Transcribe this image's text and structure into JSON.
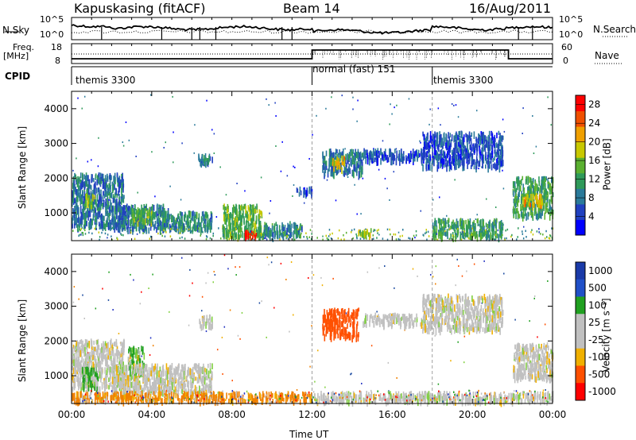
{
  "header": {
    "station": "Kapuskasing (fitACF)",
    "beam": "Beam 14",
    "date": "16/Aug/2011"
  },
  "panels": {
    "nsky_label": "N.Sky",
    "nsearch_label": "N.Search",
    "freq_label_line1": "Freq.",
    "freq_label_line2": "[MHz]",
    "nave_label": "Nave",
    "cpid_label": "CPID",
    "nsky_ticks": [
      "10^5",
      "10^0"
    ],
    "nsearch_ticks": [
      "10^5",
      "10^0"
    ],
    "freq_ticks": [
      "18",
      "8"
    ],
    "nave_ticks": [
      "60",
      "0"
    ]
  },
  "cpid_segments": [
    {
      "label": "themis 3300",
      "start": 0,
      "end": 12
    },
    {
      "label": "normal (fast) 151",
      "start": 12,
      "end": 18
    },
    {
      "label": "themis 3300",
      "start": 18,
      "end": 24
    }
  ],
  "chart_data": [
    {
      "type": "heatmap",
      "ylabel": "Slant Range [km]",
      "xlabel": "Time UT",
      "x_ticks": [
        "00:00",
        "04:00",
        "08:00",
        "12:00",
        "16:00",
        "20:00",
        "00:00"
      ],
      "xlim_hours": [
        0,
        24
      ],
      "y_ticks": [
        1000,
        2000,
        3000,
        4000
      ],
      "ylim": [
        200,
        4500
      ],
      "colorbar": {
        "label": "Power [dB]",
        "ticks": [
          "4",
          "8",
          "12",
          "16",
          "20",
          "24",
          "28"
        ],
        "range": [
          0,
          30
        ]
      },
      "regions": [
        {
          "t": [
            0.0,
            2.6
          ],
          "r": [
            600,
            2100
          ],
          "level": 8
        },
        {
          "t": [
            0.6,
            1.2
          ],
          "r": [
            1200,
            1500
          ],
          "level": 16
        },
        {
          "t": [
            2.0,
            4.8
          ],
          "r": [
            500,
            1200
          ],
          "level": 8
        },
        {
          "t": [
            3.0,
            4.0
          ],
          "r": [
            700,
            1100
          ],
          "level": 14
        },
        {
          "t": [
            4.5,
            7.0
          ],
          "r": [
            500,
            1000
          ],
          "level": 10
        },
        {
          "t": [
            7.5,
            9.5
          ],
          "r": [
            300,
            1200
          ],
          "level": 14
        },
        {
          "t": [
            8.5,
            9.2
          ],
          "r": [
            300,
            450
          ],
          "level": 28
        },
        {
          "t": [
            9.5,
            11.5
          ],
          "r": [
            300,
            700
          ],
          "level": 10
        },
        {
          "t": [
            6.3,
            7.0
          ],
          "r": [
            2400,
            2700
          ],
          "level": 8
        },
        {
          "t": [
            11.2,
            12.0
          ],
          "r": [
            1500,
            1700
          ],
          "level": 6
        },
        {
          "t": [
            12.5,
            14.5
          ],
          "r": [
            2100,
            2800
          ],
          "level": 8
        },
        {
          "t": [
            13.0,
            13.6
          ],
          "r": [
            2250,
            2600
          ],
          "level": 20
        },
        {
          "t": [
            14.5,
            17.5
          ],
          "r": [
            2500,
            2800
          ],
          "level": 6
        },
        {
          "t": [
            17.5,
            21.5
          ],
          "r": [
            2300,
            3300
          ],
          "level": 6
        },
        {
          "t": [
            18.0,
            21.5
          ],
          "r": [
            300,
            800
          ],
          "level": 12
        },
        {
          "t": [
            14.0,
            15.0
          ],
          "r": [
            350,
            500
          ],
          "level": 18
        },
        {
          "t": [
            22.0,
            24.0
          ],
          "r": [
            900,
            2000
          ],
          "level": 12
        },
        {
          "t": [
            22.5,
            23.5
          ],
          "r": [
            1200,
            1500
          ],
          "level": 20
        }
      ]
    },
    {
      "type": "heatmap",
      "ylabel": "Slant Range [km]",
      "xlabel": "Time UT",
      "x_ticks": [
        "00:00",
        "04:00",
        "08:00",
        "12:00",
        "16:00",
        "20:00",
        "00:00"
      ],
      "xlim_hours": [
        0,
        24
      ],
      "y_ticks": [
        1000,
        2000,
        3000,
        4000
      ],
      "ylim": [
        200,
        4500
      ],
      "colorbar": {
        "label": "Velocity  [m s⁻¹]",
        "ticks": [
          "1000",
          "500",
          "100",
          "25",
          "-25",
          "-100",
          "-500",
          "-1000"
        ]
      },
      "regions": [
        {
          "t": [
            0.0,
            2.6
          ],
          "r": [
            600,
            2000
          ],
          "v": 0
        },
        {
          "t": [
            0.5,
            1.3
          ],
          "r": [
            600,
            1200
          ],
          "v": 150
        },
        {
          "t": [
            2.8,
            3.6
          ],
          "r": [
            1000,
            1800
          ],
          "v": 150
        },
        {
          "t": [
            2.0,
            7.0
          ],
          "r": [
            500,
            1300
          ],
          "v": 0
        },
        {
          "t": [
            6.3,
            7.0
          ],
          "r": [
            2400,
            2700
          ],
          "v": 0
        },
        {
          "t": [
            0.0,
            12.0
          ],
          "r": [
            250,
            500
          ],
          "v": -200
        },
        {
          "t": [
            12.5,
            14.3
          ],
          "r": [
            2100,
            2900
          ],
          "v": -700
        },
        {
          "t": [
            14.5,
            17.5
          ],
          "r": [
            2450,
            2750
          ],
          "v": 0
        },
        {
          "t": [
            17.5,
            21.5
          ],
          "r": [
            2300,
            3300
          ],
          "v": 0
        },
        {
          "t": [
            12.0,
            24.0
          ],
          "r": [
            250,
            500
          ],
          "v": 0
        },
        {
          "t": [
            22.0,
            24.0
          ],
          "r": [
            900,
            1900
          ],
          "v": 0
        }
      ]
    }
  ],
  "colors": {
    "power_scale": [
      "#0000ff",
      "#2040c0",
      "#2a7a9a",
      "#2f9a5a",
      "#5ab030",
      "#c8c800",
      "#f0a000",
      "#f05000",
      "#ff0000"
    ],
    "velocity_scale": [
      "#ff0000",
      "#ff5000",
      "#f08000",
      "#f0b000",
      "#c0c0c0",
      "#c0c0c0",
      "#80d040",
      "#20a020",
      "#1a4aa0",
      "#2030c0"
    ]
  }
}
